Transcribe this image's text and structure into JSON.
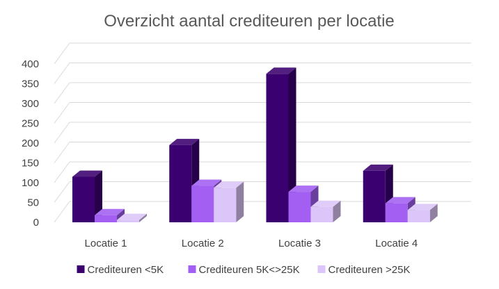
{
  "chart_data": {
    "type": "bar",
    "title": "Overzicht aantal crediteuren per locatie",
    "xlabel": "",
    "ylabel": "",
    "categories": [
      "Locatie 1",
      "Locatie 2",
      "Locatie 3",
      "Locatie 4"
    ],
    "series": [
      {
        "name": "Crediteuren <5K",
        "values": [
          115,
          195,
          375,
          130
        ],
        "color": "#3a006f"
      },
      {
        "name": "Crediteuren 5K<>25K",
        "values": [
          18,
          92,
          77,
          48
        ],
        "color": "#a25ff2"
      },
      {
        "name": "Crediteuren >25K",
        "values": [
          6,
          87,
          39,
          31
        ],
        "color": "#dcc5f8"
      }
    ],
    "yticks": [
      0,
      50,
      100,
      150,
      200,
      250,
      300,
      350,
      400
    ],
    "ylim": [
      0,
      400
    ],
    "grid": true,
    "style": "3d-column",
    "legend_position": "bottom"
  }
}
